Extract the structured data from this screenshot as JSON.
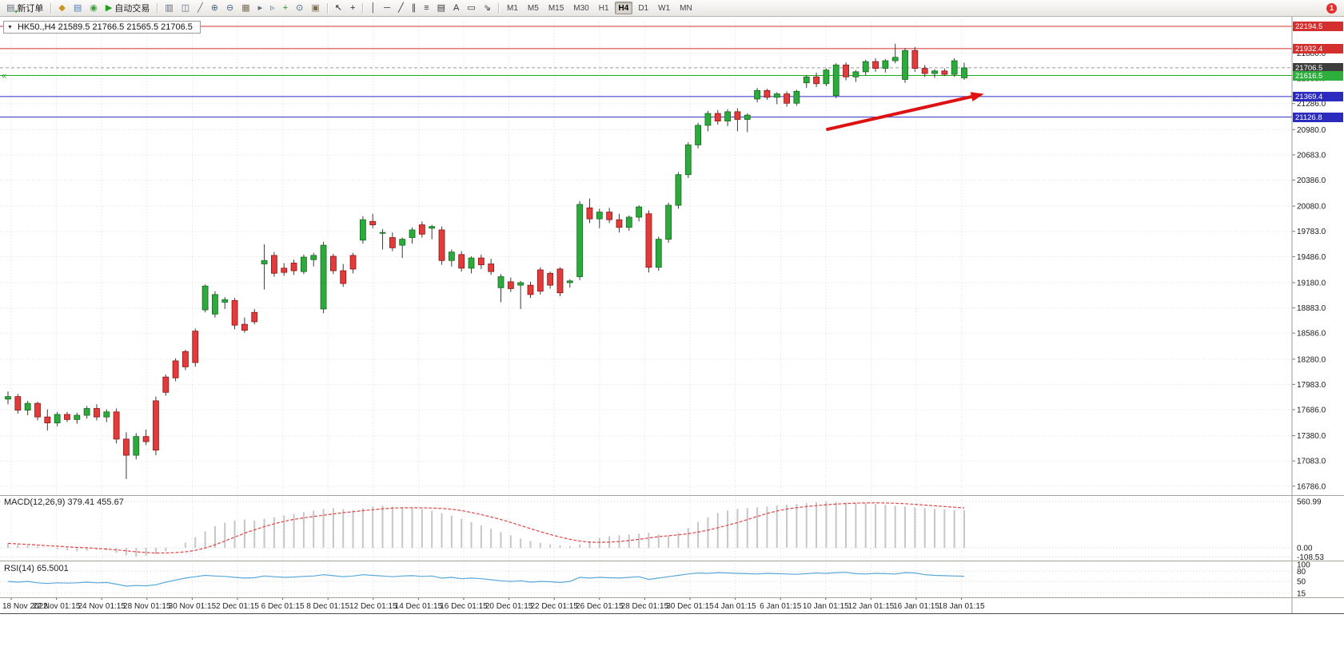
{
  "toolbar": {
    "new_order_label": "新订单",
    "autotrading_label": "自动交易",
    "left_icons": [
      {
        "name": "new-chart-icon",
        "glyph": "◆",
        "color": "#c9941f"
      },
      {
        "name": "profiles-icon",
        "glyph": "▤",
        "color": "#4a7ebb"
      },
      {
        "name": "refresh-icon",
        "glyph": "◉",
        "color": "#3a9c3a"
      }
    ],
    "chart_tool_icons": [
      {
        "name": "bar-chart-icon",
        "glyph": "▥",
        "color": "#5a6b7d"
      },
      {
        "name": "candlestick-chart-icon",
        "glyph": "◫",
        "color": "#5a6b7d"
      },
      {
        "name": "line-chart-icon",
        "glyph": "╱",
        "color": "#5a6b7d"
      },
      {
        "name": "zoom-in-icon",
        "glyph": "⊕",
        "color": "#46648a"
      },
      {
        "name": "zoom-out-icon",
        "glyph": "⊖",
        "color": "#46648a"
      },
      {
        "name": "tile-windows-icon",
        "glyph": "▦",
        "color": "#7b6c52"
      },
      {
        "name": "auto-scroll-icon",
        "glyph": "▸",
        "color": "#5a6b7d"
      },
      {
        "name": "chart-shift-icon",
        "glyph": "▹",
        "color": "#5a6b7d"
      },
      {
        "name": "indicators-icon",
        "glyph": "+",
        "color": "#1f8f1f"
      },
      {
        "name": "periods-icon",
        "glyph": "⊙",
        "color": "#46648a"
      },
      {
        "name": "templates-icon",
        "glyph": "▣",
        "color": "#7b6c52"
      }
    ],
    "pointer_icons": [
      {
        "name": "cursor-icon",
        "glyph": "↖",
        "color": "#222222"
      },
      {
        "name": "crosshair-icon",
        "glyph": "+",
        "color": "#222222"
      }
    ],
    "drawing_icons": [
      {
        "name": "vertical-line-icon",
        "glyph": "│",
        "color": "#333333"
      },
      {
        "name": "horizontal-line-icon",
        "glyph": "─",
        "color": "#333333"
      },
      {
        "name": "trendline-icon",
        "glyph": "╱",
        "color": "#333333"
      },
      {
        "name": "equidistant-channel-icon",
        "glyph": "∥",
        "color": "#333333"
      },
      {
        "name": "fibonacci-icon",
        "glyph": "≡",
        "color": "#333333"
      },
      {
        "name": "grid-icon",
        "glyph": "▤",
        "color": "#333333"
      },
      {
        "name": "text-icon",
        "glyph": "A",
        "color": "#333333"
      },
      {
        "name": "text-label-icon",
        "glyph": "▭",
        "color": "#333333"
      },
      {
        "name": "arrows-icon",
        "glyph": "⇘",
        "color": "#333333"
      }
    ],
    "timeframes": [
      "M1",
      "M5",
      "M15",
      "M30",
      "H1",
      "H4",
      "D1",
      "W1",
      "MN"
    ],
    "active_timeframe": "H4",
    "notification_count": "1"
  },
  "chart": {
    "title": "HK50.,H4 21589.5 21766.5 21565.5 21706.5",
    "symbol": "HK50.",
    "period": "H4"
  },
  "indicators": {
    "macd_label": "MACD(12,26,9) 379.41 455.67",
    "rsi_label": "RSI(14) 65.5001"
  },
  "chart_data": [
    {
      "type": "candlestick",
      "title": "HK50. H4",
      "ylim": [
        16700,
        22260
      ],
      "y_axis_ticks": [
        "21880.0",
        "21583.0",
        "21286.0",
        "20980.0",
        "20683.0",
        "20386.0",
        "20080.0",
        "19783.0",
        "19486.0",
        "19180.0",
        "18883.0",
        "18586.0",
        "18280.0",
        "17983.0",
        "17686.0",
        "17380.0",
        "17083.0",
        "16786.0"
      ],
      "x_axis_labels": [
        "18 Nov 2022",
        "22 Nov 01:15",
        "24 Nov 01:15",
        "28 Nov 01:15",
        "30 Nov 01:15",
        "2 Dec 01:15",
        "6 Dec 01:15",
        "8 Dec 01:15",
        "12 Dec 01:15",
        "14 Dec 01:15",
        "16 Dec 01:15",
        "20 Dec 01:15",
        "22 Dec 01:15",
        "26 Dec 01:15",
        "28 Dec 01:15",
        "30 Dec 01:15",
        "4 Jan 01:15",
        "6 Jan 01:15",
        "10 Jan 01:15",
        "12 Jan 01:15",
        "16 Jan 01:15",
        "18 Jan 01:15"
      ],
      "up_color": "#2cab3c",
      "down_color": "#e13b3b",
      "candles_ohlc": [
        [
          17810,
          17900,
          17750,
          17840
        ],
        [
          17840,
          17870,
          17640,
          17680
        ],
        [
          17680,
          17790,
          17620,
          17760
        ],
        [
          17760,
          17780,
          17560,
          17600
        ],
        [
          17600,
          17690,
          17440,
          17530
        ],
        [
          17530,
          17660,
          17490,
          17630
        ],
        [
          17630,
          17660,
          17540,
          17570
        ],
        [
          17570,
          17650,
          17520,
          17620
        ],
        [
          17620,
          17730,
          17580,
          17700
        ],
        [
          17700,
          17750,
          17560,
          17600
        ],
        [
          17600,
          17690,
          17540,
          17660
        ],
        [
          17660,
          17700,
          17290,
          17340
        ],
        [
          17340,
          17420,
          16870,
          17150
        ],
        [
          17150,
          17410,
          17100,
          17370
        ],
        [
          17370,
          17450,
          17270,
          17310
        ],
        [
          17790,
          17840,
          17150,
          17210
        ],
        [
          18070,
          18100,
          17850,
          17890
        ],
        [
          18260,
          18290,
          18020,
          18060
        ],
        [
          18370,
          18390,
          18150,
          18190
        ],
        [
          18610,
          18640,
          18190,
          18240
        ],
        [
          18860,
          19160,
          18830,
          19140
        ],
        [
          18810,
          19080,
          18770,
          19040
        ],
        [
          18950,
          19010,
          18870,
          18980
        ],
        [
          18970,
          19000,
          18630,
          18680
        ],
        [
          18690,
          18770,
          18590,
          18620
        ],
        [
          18830,
          18870,
          18690,
          18720
        ],
        [
          19400,
          19630,
          19100,
          19440
        ],
        [
          19500,
          19540,
          19250,
          19290
        ],
        [
          19350,
          19410,
          19260,
          19300
        ],
        [
          19410,
          19450,
          19270,
          19320
        ],
        [
          19310,
          19510,
          19280,
          19480
        ],
        [
          19450,
          19530,
          19370,
          19500
        ],
        [
          18870,
          19660,
          18820,
          19620
        ],
        [
          19490,
          19520,
          19280,
          19320
        ],
        [
          19320,
          19400,
          19130,
          19170
        ],
        [
          19500,
          19530,
          19290,
          19340
        ],
        [
          19680,
          19960,
          19640,
          19920
        ],
        [
          19900,
          19990,
          19820,
          19860
        ],
        [
          19760,
          19810,
          19570,
          19770
        ],
        [
          19710,
          19770,
          19550,
          19590
        ],
        [
          19620,
          19710,
          19470,
          19690
        ],
        [
          19710,
          19830,
          19640,
          19800
        ],
        [
          19860,
          19900,
          19710,
          19750
        ],
        [
          19820,
          19860,
          19690,
          19840
        ],
        [
          19800,
          19840,
          19390,
          19440
        ],
        [
          19440,
          19570,
          19370,
          19540
        ],
        [
          19510,
          19550,
          19310,
          19350
        ],
        [
          19350,
          19490,
          19290,
          19470
        ],
        [
          19470,
          19510,
          19340,
          19390
        ],
        [
          19400,
          19460,
          19270,
          19310
        ],
        [
          19120,
          19280,
          18950,
          19250
        ],
        [
          19190,
          19240,
          19070,
          19110
        ],
        [
          19150,
          19200,
          18870,
          19180
        ],
        [
          19150,
          19190,
          19000,
          19040
        ],
        [
          19330,
          19360,
          19040,
          19080
        ],
        [
          19290,
          19310,
          19110,
          19150
        ],
        [
          19340,
          19360,
          19020,
          19060
        ],
        [
          19180,
          19220,
          19120,
          19200
        ],
        [
          19250,
          20140,
          19210,
          20100
        ],
        [
          20060,
          20170,
          19880,
          19930
        ],
        [
          19930,
          20050,
          19820,
          20010
        ],
        [
          20010,
          20060,
          19880,
          19920
        ],
        [
          19920,
          19990,
          19770,
          19830
        ],
        [
          19830,
          19970,
          19790,
          19950
        ],
        [
          19950,
          20090,
          19900,
          20070
        ],
        [
          19990,
          20030,
          19300,
          19360
        ],
        [
          19360,
          19720,
          19320,
          19690
        ],
        [
          19690,
          20120,
          19650,
          20090
        ],
        [
          20090,
          20480,
          20050,
          20450
        ],
        [
          20450,
          20830,
          20410,
          20800
        ],
        [
          20800,
          21060,
          20760,
          21030
        ],
        [
          21030,
          21200,
          20960,
          21170
        ],
        [
          21170,
          21210,
          21040,
          21080
        ],
        [
          21080,
          21220,
          21020,
          21190
        ],
        [
          21190,
          21230,
          20960,
          21100
        ],
        [
          21100,
          21170,
          20950,
          21150
        ],
        [
          21340,
          21470,
          21300,
          21440
        ],
        [
          21440,
          21460,
          21330,
          21360
        ],
        [
          21360,
          21420,
          21280,
          21400
        ],
        [
          21400,
          21430,
          21250,
          21290
        ],
        [
          21290,
          21450,
          21260,
          21430
        ],
        [
          21530,
          21620,
          21470,
          21600
        ],
        [
          21600,
          21650,
          21480,
          21520
        ],
        [
          21520,
          21700,
          21490,
          21680
        ],
        [
          21380,
          21760,
          21350,
          21740
        ],
        [
          21740,
          21770,
          21560,
          21600
        ],
        [
          21600,
          21680,
          21540,
          21660
        ],
        [
          21660,
          21800,
          21620,
          21780
        ],
        [
          21780,
          21820,
          21660,
          21700
        ],
        [
          21700,
          21810,
          21650,
          21790
        ],
        [
          21790,
          21990,
          21760,
          21830
        ],
        [
          21570,
          21940,
          21530,
          21910
        ],
        [
          21910,
          21950,
          21660,
          21700
        ],
        [
          21700,
          21740,
          21600,
          21640
        ],
        [
          21640,
          21690,
          21590,
          21670
        ],
        [
          21670,
          21700,
          21610,
          21630
        ],
        [
          21630,
          21820,
          21600,
          21790
        ],
        [
          21589.5,
          21766.5,
          21565.5,
          21706.5
        ]
      ],
      "levels": [
        {
          "label": "22194.5",
          "price": 22194.5,
          "line_color": "#d32f2f",
          "line_style": "solid",
          "badge_color": "#d32f2f"
        },
        {
          "label": "21932.4",
          "price": 21932.4,
          "line_color": "#d32f2f",
          "line_style": "solid",
          "badge_color": "#d32f2f"
        },
        {
          "label": "21706.5",
          "price": 21706.5,
          "line_color": "#9a9a9a",
          "line_style": "dashed",
          "badge_color": "#3d3d3d",
          "role": "current-price"
        },
        {
          "label": "21616.5",
          "price": 21616.5,
          "line_color": "#1ca81c",
          "line_style": "solid",
          "badge_color": "#2eae3c"
        },
        {
          "label": "21369.4",
          "price": 21369.4,
          "line_color": "#2b2bc0",
          "line_style": "solid",
          "badge_color": "#2b2bc0"
        },
        {
          "label": "21126.8",
          "price": 21126.8,
          "line_color": "#2b2bc0",
          "line_style": "solid",
          "badge_color": "#2b2bc0"
        }
      ],
      "annotation_arrow": {
        "from_index": 83,
        "from_price": 20980,
        "to_index": 99,
        "to_price": 21400,
        "color": "#de1212"
      },
      "last_ohlc": {
        "open": 21589.5,
        "high": 21766.5,
        "low": 21565.5,
        "close": 21706.5
      }
    },
    {
      "type": "bar",
      "name": "MACD(12,26,9)",
      "current_values": [
        379.41,
        455.67
      ],
      "ylim": [
        -135,
        620
      ],
      "axis_labels": [
        "560.99",
        "0.00",
        "-108.53"
      ],
      "histogram_color": "#c6c6c6",
      "signal_color": "#e04545",
      "values": [
        55,
        40,
        28,
        12,
        0,
        -18,
        -30,
        -42,
        -34,
        -22,
        -30,
        -58,
        -92,
        -106,
        -98,
        -78,
        -40,
        2,
        62,
        130,
        200,
        262,
        305,
        332,
        344,
        332,
        352,
        372,
        392,
        412,
        432,
        452,
        472,
        482,
        470,
        458,
        482,
        502,
        512,
        500,
        490,
        478,
        468,
        450,
        420,
        390,
        352,
        312,
        272,
        232,
        192,
        152,
        112,
        82,
        60,
        42,
        30,
        22,
        42,
        82,
        122,
        142,
        152,
        162,
        172,
        182,
        162,
        142,
        182,
        242,
        312,
        372,
        422,
        452,
        472,
        482,
        492,
        502,
        512,
        522,
        532,
        542,
        552,
        561,
        556,
        550,
        545,
        540,
        530,
        520,
        510,
        500,
        490,
        482,
        472,
        465,
        458,
        455.67
      ]
    },
    {
      "type": "line",
      "name": "RSI(14)",
      "current_value": 65.5001,
      "ylim": [
        3,
        107
      ],
      "levels": [
        80,
        50,
        15
      ],
      "axis_labels": [
        "100",
        "80",
        "50",
        "15"
      ],
      "line_color": "#58a8d8",
      "values": [
        50,
        48,
        50,
        46,
        44,
        46,
        45,
        46,
        48,
        46,
        47,
        42,
        36,
        38,
        37,
        40,
        48,
        54,
        60,
        64,
        68,
        66,
        65,
        62,
        60,
        61,
        66,
        64,
        62,
        63,
        65,
        66,
        70,
        67,
        64,
        66,
        70,
        68,
        66,
        64,
        66,
        67,
        65,
        66,
        60,
        62,
        58,
        60,
        58,
        55,
        52,
        50,
        52,
        48,
        50,
        49,
        47,
        50,
        62,
        60,
        62,
        61,
        60,
        62,
        64,
        56,
        60,
        64,
        68,
        72,
        75,
        74,
        76,
        75,
        74,
        73,
        72,
        74,
        73,
        72,
        71,
        73,
        75,
        74,
        76,
        77,
        73,
        72,
        74,
        73,
        72,
        76,
        75,
        70,
        68,
        67,
        66,
        65.5
      ]
    }
  ]
}
